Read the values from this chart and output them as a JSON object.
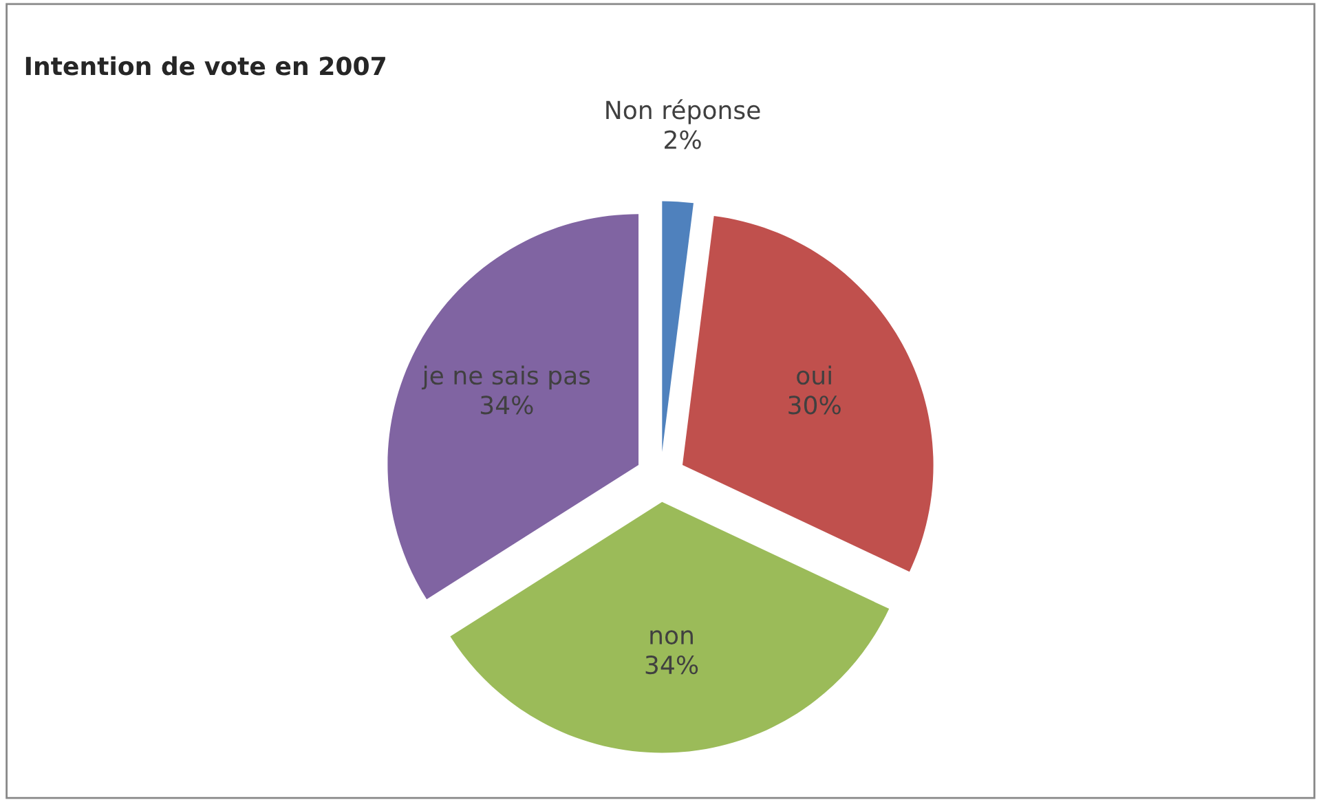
{
  "chart_data": {
    "type": "pie",
    "title": "Intention de vote en 2007",
    "categories": [
      "Non réponse",
      "oui",
      "non",
      "je ne sais pas"
    ],
    "values": [
      2,
      30,
      34,
      34
    ],
    "value_labels": [
      "2%",
      "30%",
      "34%",
      "34%"
    ],
    "colors": [
      "#4f81bd",
      "#c0504d",
      "#9bbb59",
      "#8064a2"
    ],
    "legend": false
  }
}
